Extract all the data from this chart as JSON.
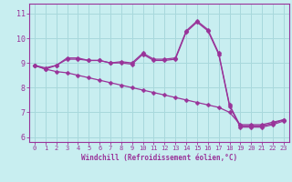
{
  "hours": [
    0,
    1,
    2,
    3,
    4,
    5,
    6,
    7,
    8,
    9,
    10,
    11,
    12,
    13,
    14,
    15,
    16,
    17,
    18,
    19,
    20,
    21,
    22,
    23
  ],
  "line1": [
    8.9,
    8.8,
    8.9,
    9.2,
    9.2,
    9.1,
    9.1,
    9.0,
    9.05,
    9.0,
    9.4,
    9.15,
    9.15,
    9.2,
    10.3,
    10.7,
    10.35,
    9.4,
    7.3,
    6.45,
    6.45,
    6.45,
    6.55,
    6.7
  ],
  "line2": [
    8.9,
    8.75,
    8.9,
    9.15,
    9.15,
    9.1,
    9.1,
    9.0,
    9.0,
    8.95,
    9.35,
    9.1,
    9.1,
    9.15,
    10.25,
    10.65,
    10.3,
    9.35,
    7.25,
    6.4,
    6.4,
    6.4,
    6.5,
    6.65
  ],
  "line3": [
    8.9,
    8.75,
    8.65,
    8.6,
    8.5,
    8.4,
    8.3,
    8.2,
    8.1,
    8.0,
    7.9,
    7.8,
    7.7,
    7.6,
    7.5,
    7.4,
    7.3,
    7.2,
    7.0,
    6.5,
    6.5,
    6.5,
    6.6,
    6.7
  ],
  "line_color": "#993399",
  "bg_color": "#C8EEF0",
  "grid_color": "#A8D8DC",
  "xlabel": "Windchill (Refroidissement éolien,°C)",
  "ylim": [
    5.8,
    11.4
  ],
  "xlim_min": -0.5,
  "xlim_max": 23.5,
  "yticks": [
    6,
    7,
    8,
    9,
    10,
    11
  ],
  "xticks": [
    0,
    1,
    2,
    3,
    4,
    5,
    6,
    7,
    8,
    9,
    10,
    11,
    12,
    13,
    14,
    15,
    16,
    17,
    18,
    19,
    20,
    21,
    22,
    23
  ],
  "font_color": "#993399",
  "markersize": 2.5,
  "linewidth": 0.9,
  "tick_fontsize": 5.0,
  "xlabel_fontsize": 5.5
}
